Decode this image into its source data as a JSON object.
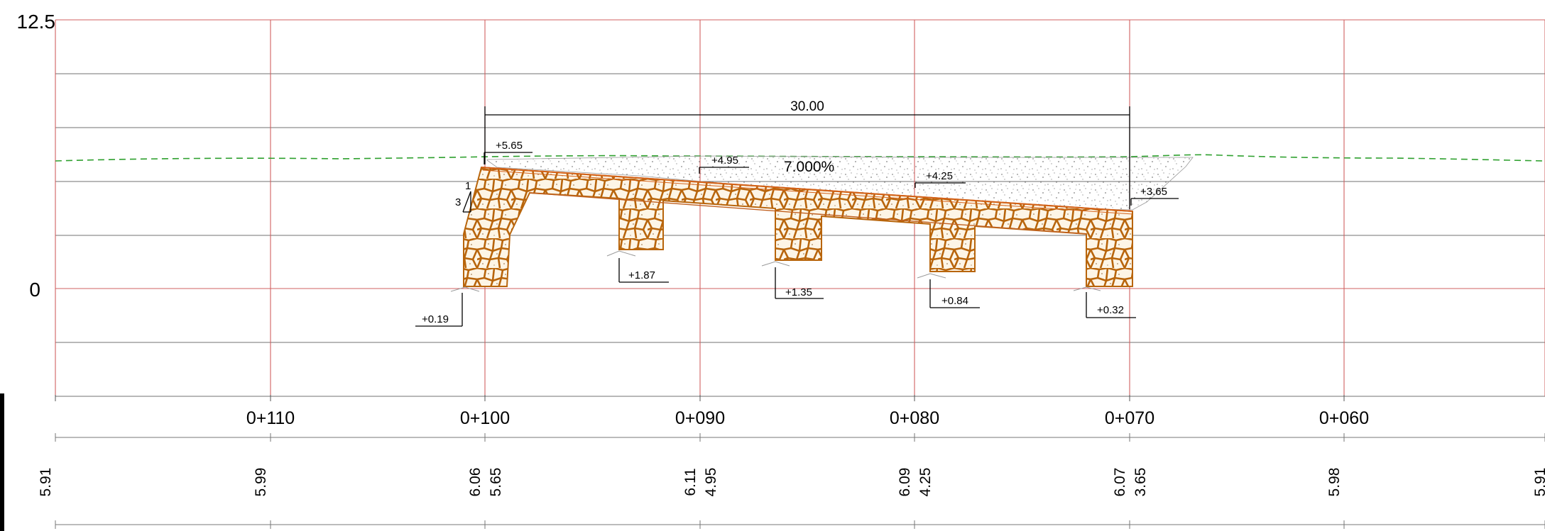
{
  "colors": {
    "grid_red": "#d06060",
    "grid_gray": "#707070",
    "ground_green": "#2ea02e",
    "stone_fill": "#fdf5e6",
    "stone_outline": "#b8650c",
    "gravel": "#7f7f7f"
  },
  "icons": {
    "stone_fill": "rubble-masonry-texture",
    "gravel_fill": "gravel-dot-texture"
  },
  "axis": {
    "y_top_label": "12.5",
    "y_zero_label": "0"
  },
  "stations": [
    "0+110",
    "0+100",
    "0+090",
    "0+080",
    "0+070",
    "0+060"
  ],
  "dimension": {
    "width_label": "30.00"
  },
  "slope": {
    "label": "7.000%",
    "rise": "1",
    "run": "3"
  },
  "top_levels": [
    "+5.65",
    "+4.95",
    "+4.25",
    "+3.65"
  ],
  "foundation_levels": [
    "+0.19",
    "+1.87",
    "+1.35",
    "+0.84",
    "+0.32"
  ],
  "bottom_rows": [
    [
      "5.91"
    ],
    [
      "5.99"
    ],
    [
      "6.06",
      "5.65"
    ],
    [
      "6.11",
      "4.95"
    ],
    [
      "6.09",
      "4.25"
    ],
    [
      "6.07",
      "3.65"
    ],
    [
      "5.98"
    ],
    [
      "5.91"
    ]
  ]
}
